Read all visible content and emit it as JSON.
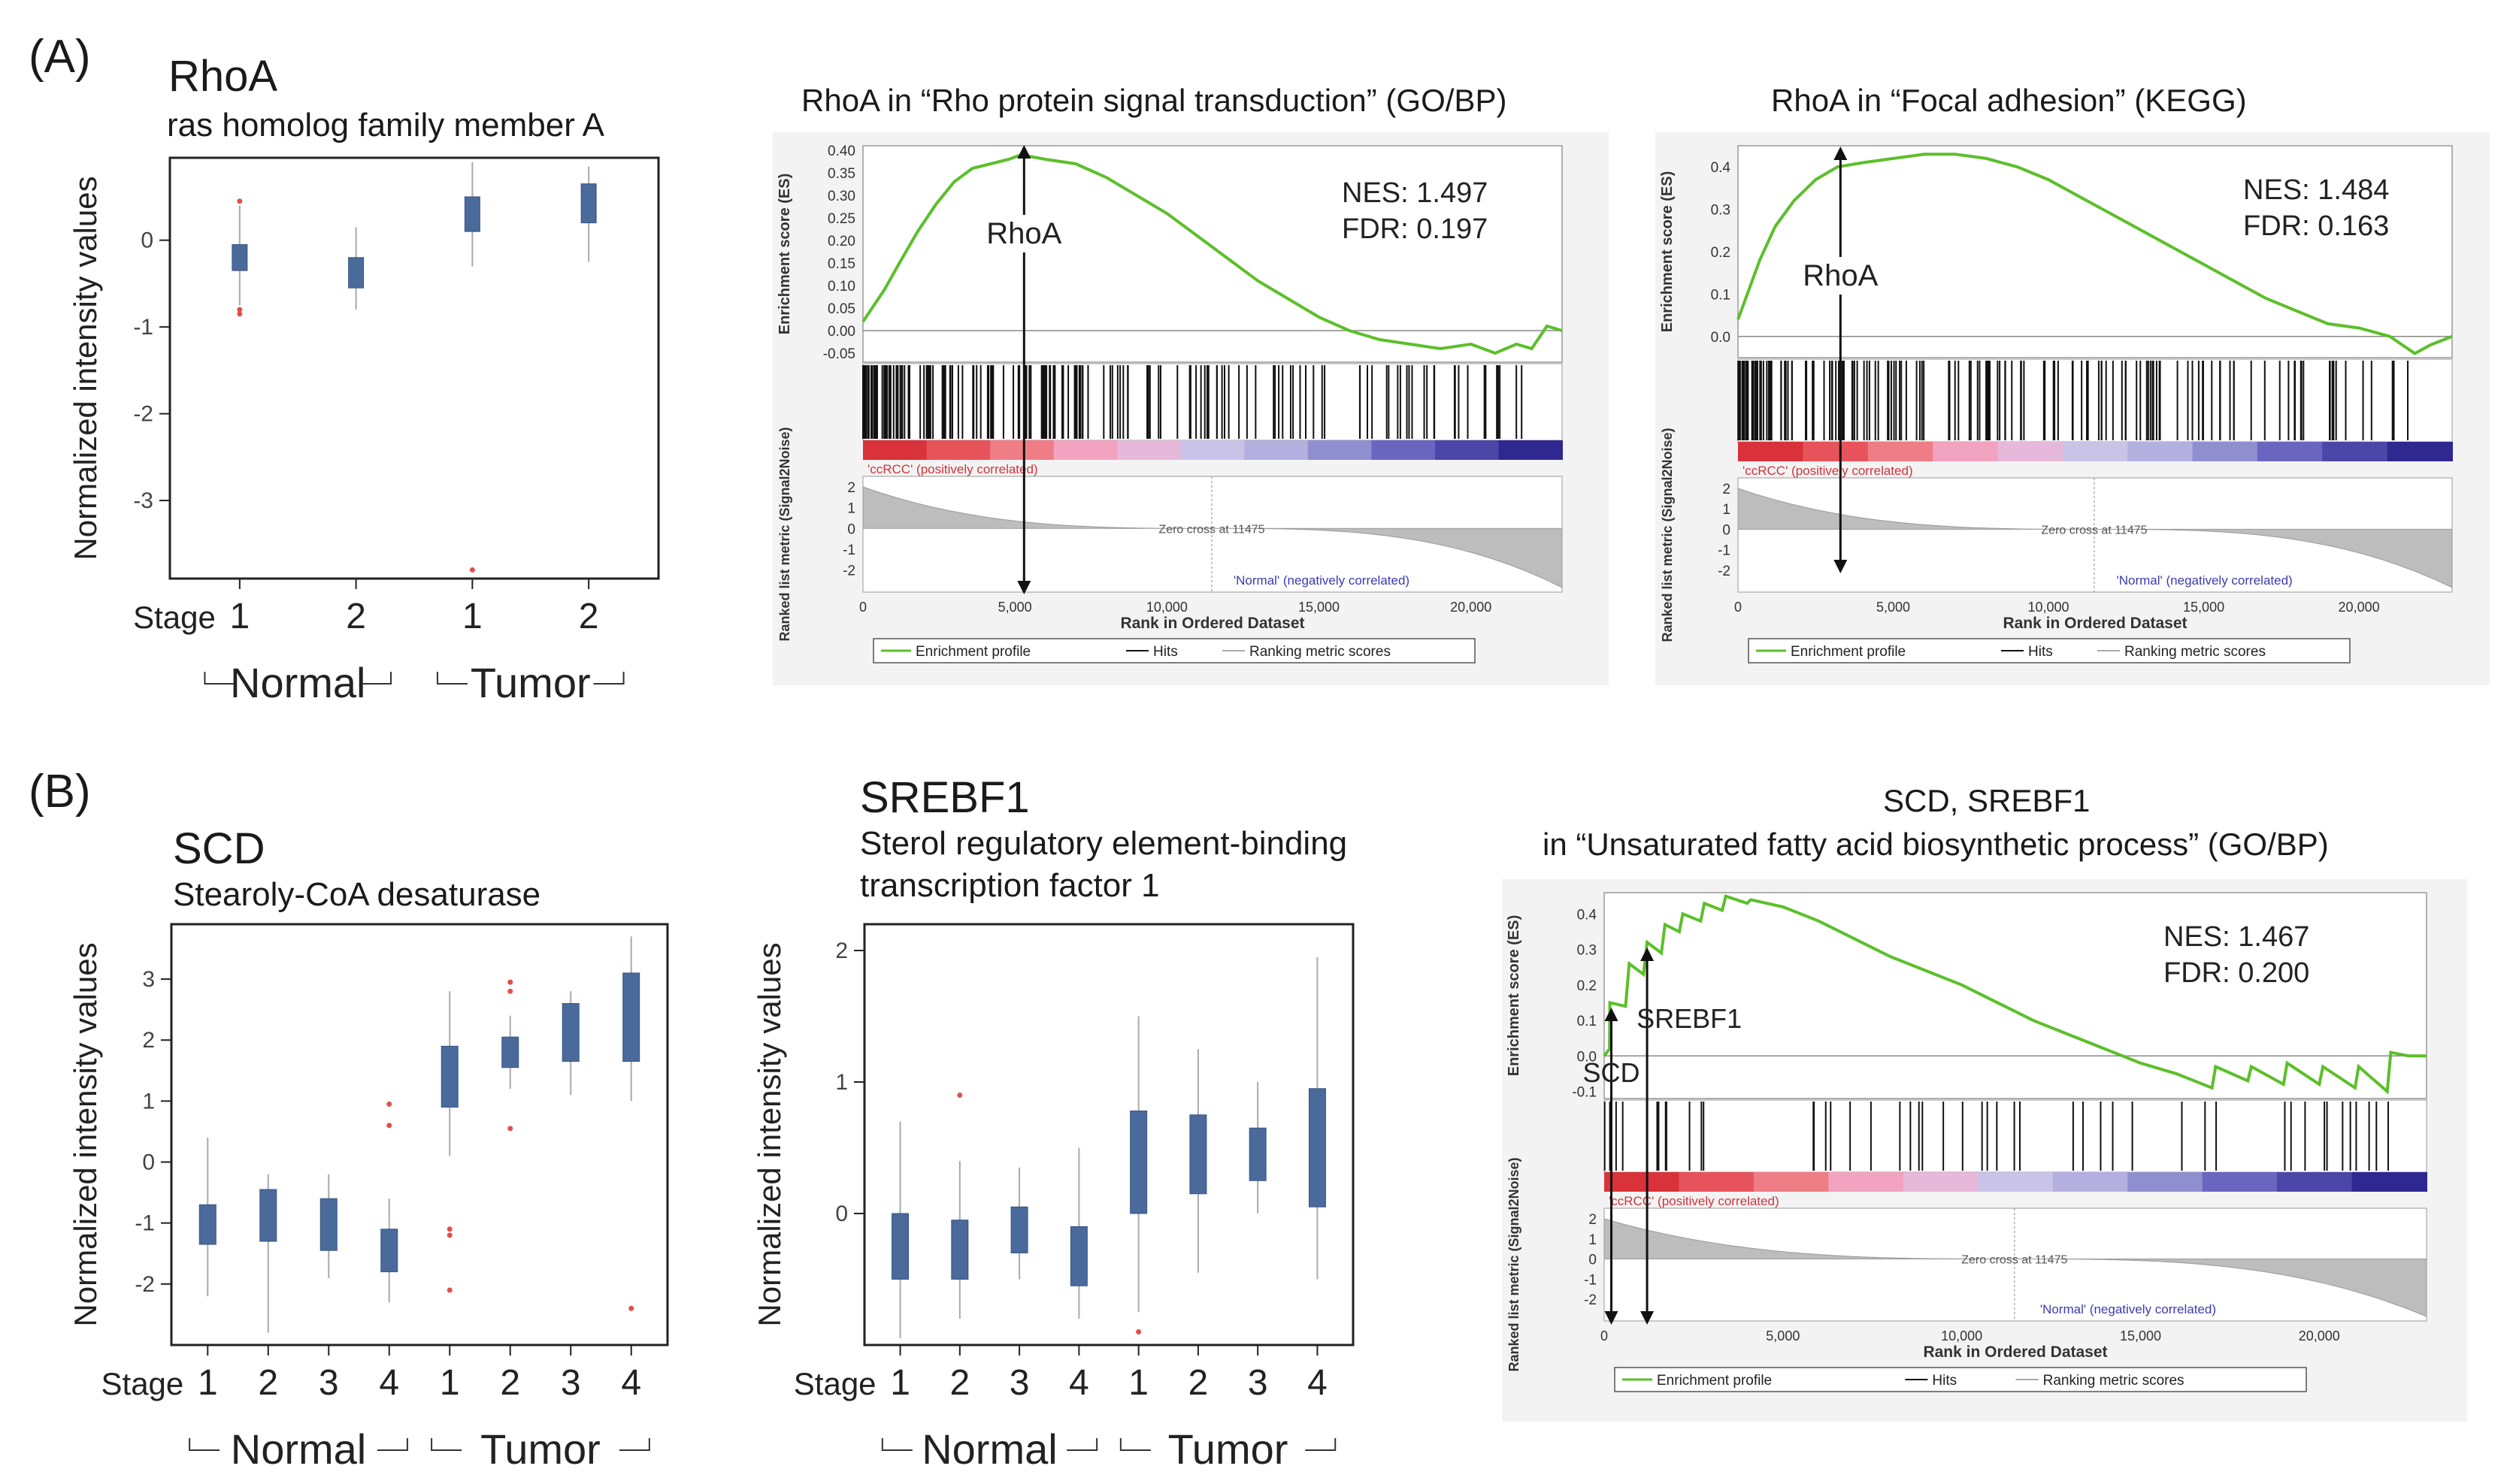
{
  "panels": {
    "a": {
      "letter": "(A)",
      "gene": "RhoA",
      "description": "ras homolog family member A",
      "gsea1": {
        "title": "RhoA in “Rho protein signal transduction” (GO/BP)",
        "nes": "NES: 1.497",
        "fdr": "FDR: 0.197",
        "marker": "RhoA"
      },
      "gsea2": {
        "title": "RhoA in “Focal adhesion” (KEGG)",
        "nes": "NES: 1.484",
        "fdr": "FDR: 0.163",
        "marker": "RhoA"
      }
    },
    "b": {
      "letter": "(B)",
      "gene1": "SCD",
      "description1": "Stearoly-CoA desaturase",
      "gene2": "SREBF1",
      "description2_line1": "Sterol regulatory element-binding",
      "description2_line2": "transcription factor 1",
      "gsea": {
        "title_line1": "SCD, SREBF1",
        "title_line2": "in “Unsaturated fatty acid biosynthetic process” (GO/BP)",
        "nes": "NES: 1.467",
        "fdr": "FDR: 0.200",
        "marker1": "SREBF1",
        "marker2": "SCD"
      }
    }
  },
  "gsea_common": {
    "ylabel_es": "Enrichment score (ES)",
    "ylabel_metric": "Ranked list metric (Signal2Noise)",
    "xlabel": "Rank in Ordered Dataset",
    "pos_label": "'ccRCC' (positively correlated)",
    "neg_label": "'Normal' (negatively correlated)",
    "zero_cross": "Zero cross at 11475",
    "legend": [
      "Enrichment profile",
      "Hits",
      "Ranking metric scores"
    ],
    "x_ticks": [
      "0",
      "5,000",
      "10,000",
      "15,000",
      "20,000"
    ]
  },
  "chart_data": [
    {
      "type": "box",
      "title": "RhoA",
      "ylabel": "Normalized intensity values",
      "stage_label": "Stage",
      "categories": [
        "1",
        "2",
        "1",
        "2"
      ],
      "groups": [
        "Normal",
        "Tumor"
      ],
      "ylim": [
        -3.9,
        0.95
      ],
      "yticks": [
        "0",
        "-1",
        "-2",
        "-3"
      ],
      "ytick_values": [
        0,
        -1,
        -2,
        -3
      ],
      "boxes": [
        {
          "q1": -0.35,
          "q3": -0.05,
          "min": -0.75,
          "max": 0.4,
          "outliers": [
            -0.8,
            -0.85,
            0.45
          ]
        },
        {
          "q1": -0.55,
          "q3": -0.2,
          "min": -0.8,
          "max": 0.15,
          "outliers": []
        },
        {
          "q1": 0.1,
          "q3": 0.5,
          "min": -0.3,
          "max": 0.9,
          "outliers": [
            -3.8
          ]
        },
        {
          "q1": 0.2,
          "q3": 0.65,
          "min": -0.25,
          "max": 0.85,
          "outliers": []
        }
      ]
    },
    {
      "type": "box",
      "title": "SCD",
      "ylabel": "Normalized intensity values",
      "stage_label": "Stage",
      "categories": [
        "1",
        "2",
        "3",
        "4",
        "1",
        "2",
        "3",
        "4"
      ],
      "groups": [
        "Normal",
        "Tumor"
      ],
      "ylim": [
        -3.0,
        3.9
      ],
      "yticks": [
        "3",
        "2",
        "1",
        "0",
        "-1",
        "-2"
      ],
      "ytick_values": [
        3,
        2,
        1,
        0,
        -1,
        -2
      ],
      "boxes": [
        {
          "q1": -1.35,
          "q3": -0.7,
          "min": -2.2,
          "max": 0.4,
          "outliers": []
        },
        {
          "q1": -1.3,
          "q3": -0.45,
          "min": -2.8,
          "max": -0.2,
          "outliers": []
        },
        {
          "q1": -1.45,
          "q3": -0.6,
          "min": -1.9,
          "max": -0.2,
          "outliers": []
        },
        {
          "q1": -1.8,
          "q3": -1.1,
          "min": -2.3,
          "max": -0.6,
          "outliers": [
            0.6,
            0.95
          ]
        },
        {
          "q1": 0.9,
          "q3": 1.9,
          "min": 0.1,
          "max": 2.8,
          "outliers": [
            -1.1,
            -1.2,
            -2.1
          ]
        },
        {
          "q1": 1.55,
          "q3": 2.05,
          "min": 1.2,
          "max": 2.4,
          "outliers": [
            0.55,
            2.8,
            2.95
          ]
        },
        {
          "q1": 1.65,
          "q3": 2.6,
          "min": 1.1,
          "max": 2.8,
          "outliers": []
        },
        {
          "q1": 1.65,
          "q3": 3.1,
          "min": 1.0,
          "max": 3.7,
          "outliers": [
            -2.4
          ]
        }
      ]
    },
    {
      "type": "box",
      "title": "SREBF1",
      "ylabel": "Normalized intensity values",
      "stage_label": "Stage",
      "categories": [
        "1",
        "2",
        "3",
        "4",
        "1",
        "2",
        "3",
        "4"
      ],
      "groups": [
        "Normal",
        "Tumor"
      ],
      "ylim": [
        -1.0,
        2.2
      ],
      "yticks": [
        "2",
        "1",
        "0"
      ],
      "ytick_values": [
        2,
        1,
        0
      ],
      "boxes": [
        {
          "q1": -0.5,
          "q3": 0.0,
          "min": -0.95,
          "max": 0.7,
          "outliers": []
        },
        {
          "q1": -0.5,
          "q3": -0.05,
          "min": -0.8,
          "max": 0.4,
          "outliers": [
            0.9
          ]
        },
        {
          "q1": -0.3,
          "q3": 0.05,
          "min": -0.5,
          "max": 0.35,
          "outliers": []
        },
        {
          "q1": -0.55,
          "q3": -0.1,
          "min": -0.8,
          "max": 0.5,
          "outliers": []
        },
        {
          "q1": 0.0,
          "q3": 0.78,
          "min": -0.75,
          "max": 1.5,
          "outliers": [
            -0.9
          ]
        },
        {
          "q1": 0.15,
          "q3": 0.75,
          "min": -0.45,
          "max": 1.25,
          "outliers": []
        },
        {
          "q1": 0.25,
          "q3": 0.65,
          "min": 0.0,
          "max": 1.0,
          "outliers": []
        },
        {
          "q1": 0.05,
          "q3": 0.95,
          "min": -0.5,
          "max": 1.95,
          "outliers": []
        }
      ]
    },
    {
      "type": "line",
      "title": "RhoA in Rho protein signal transduction (GO/BP)",
      "ylabel": "Enrichment score (ES)",
      "xlabel": "Rank in Ordered Dataset",
      "xlim": [
        0,
        23000
      ],
      "ylim": [
        -0.07,
        0.41
      ],
      "yticks": [
        "0.40",
        "0.35",
        "0.30",
        "0.25",
        "0.20",
        "0.15",
        "0.10",
        "0.05",
        "0.00",
        "-0.05"
      ],
      "ytick_values": [
        0.4,
        0.35,
        0.3,
        0.25,
        0.2,
        0.15,
        0.1,
        0.05,
        0.0,
        -0.05
      ],
      "x": [
        0,
        300,
        700,
        1200,
        1800,
        2400,
        3000,
        3600,
        4200,
        4800,
        5200,
        5600,
        6000,
        7000,
        8000,
        9000,
        10000,
        11000,
        12000,
        13000,
        14000,
        15000,
        16000,
        17000,
        18000,
        19000,
        20000,
        20800,
        21500,
        22000,
        22500,
        23000
      ],
      "y": [
        0.02,
        0.05,
        0.09,
        0.15,
        0.22,
        0.28,
        0.33,
        0.36,
        0.37,
        0.38,
        0.39,
        0.385,
        0.38,
        0.37,
        0.34,
        0.3,
        0.26,
        0.21,
        0.16,
        0.11,
        0.07,
        0.03,
        0.0,
        -0.02,
        -0.03,
        -0.04,
        -0.03,
        -0.05,
        -0.03,
        -0.04,
        0.01,
        0.0
      ],
      "hits_density": "dense-left",
      "marker_rank": 5300
    },
    {
      "type": "line",
      "title": "RhoA in Focal adhesion (KEGG)",
      "ylabel": "Enrichment score (ES)",
      "xlabel": "Rank in Ordered Dataset",
      "xlim": [
        0,
        23000
      ],
      "ylim": [
        -0.05,
        0.45
      ],
      "yticks": [
        "0.4",
        "0.3",
        "0.2",
        "0.1",
        "0.0"
      ],
      "ytick_values": [
        0.4,
        0.3,
        0.2,
        0.1,
        0.0
      ],
      "x": [
        0,
        300,
        700,
        1200,
        1800,
        2500,
        3200,
        4000,
        5000,
        6000,
        7000,
        8000,
        9000,
        10000,
        11000,
        12000,
        13000,
        14000,
        15000,
        16000,
        17000,
        18000,
        19000,
        20000,
        21000,
        21800,
        22300,
        23000
      ],
      "y": [
        0.04,
        0.1,
        0.18,
        0.26,
        0.32,
        0.37,
        0.4,
        0.41,
        0.42,
        0.43,
        0.43,
        0.42,
        0.4,
        0.37,
        0.33,
        0.29,
        0.25,
        0.21,
        0.17,
        0.13,
        0.09,
        0.06,
        0.03,
        0.02,
        0.0,
        -0.04,
        -0.02,
        0.0
      ],
      "hits_density": "dense-left",
      "marker_rank": 3300
    },
    {
      "type": "line",
      "title": "SCD, SREBF1 in Unsaturated fatty acid biosynthetic process (GO/BP)",
      "ylabel": "Enrichment score (ES)",
      "xlabel": "Rank in Ordered Dataset",
      "xlim": [
        0,
        23000
      ],
      "ylim": [
        -0.12,
        0.46
      ],
      "yticks": [
        "0.4",
        "0.3",
        "0.2",
        "0.1",
        "0.0",
        "-0.1"
      ],
      "ytick_values": [
        0.4,
        0.3,
        0.2,
        0.1,
        0.0,
        -0.1
      ],
      "x": [
        0,
        150,
        160,
        600,
        700,
        1100,
        1200,
        1600,
        1700,
        2100,
        2200,
        2700,
        2800,
        3300,
        3400,
        4000,
        4100,
        5000,
        6000,
        7000,
        8000,
        9000,
        10000,
        11000,
        12000,
        13000,
        14000,
        15000,
        16000,
        17000,
        17100,
        18000,
        18100,
        19000,
        19100,
        20000,
        20100,
        21000,
        21100,
        21900,
        22000,
        22500,
        23000
      ],
      "y": [
        0.0,
        0.02,
        0.15,
        0.14,
        0.26,
        0.23,
        0.32,
        0.29,
        0.37,
        0.35,
        0.4,
        0.38,
        0.43,
        0.41,
        0.45,
        0.43,
        0.44,
        0.42,
        0.38,
        0.33,
        0.28,
        0.24,
        0.2,
        0.15,
        0.1,
        0.06,
        0.02,
        -0.02,
        -0.05,
        -0.09,
        -0.03,
        -0.07,
        -0.03,
        -0.08,
        -0.02,
        -0.08,
        -0.03,
        -0.09,
        -0.03,
        -0.1,
        0.01,
        0.0,
        0.0
      ],
      "hits_density": "sparse",
      "marker_rank": 1200,
      "marker_rank2": 200
    }
  ]
}
